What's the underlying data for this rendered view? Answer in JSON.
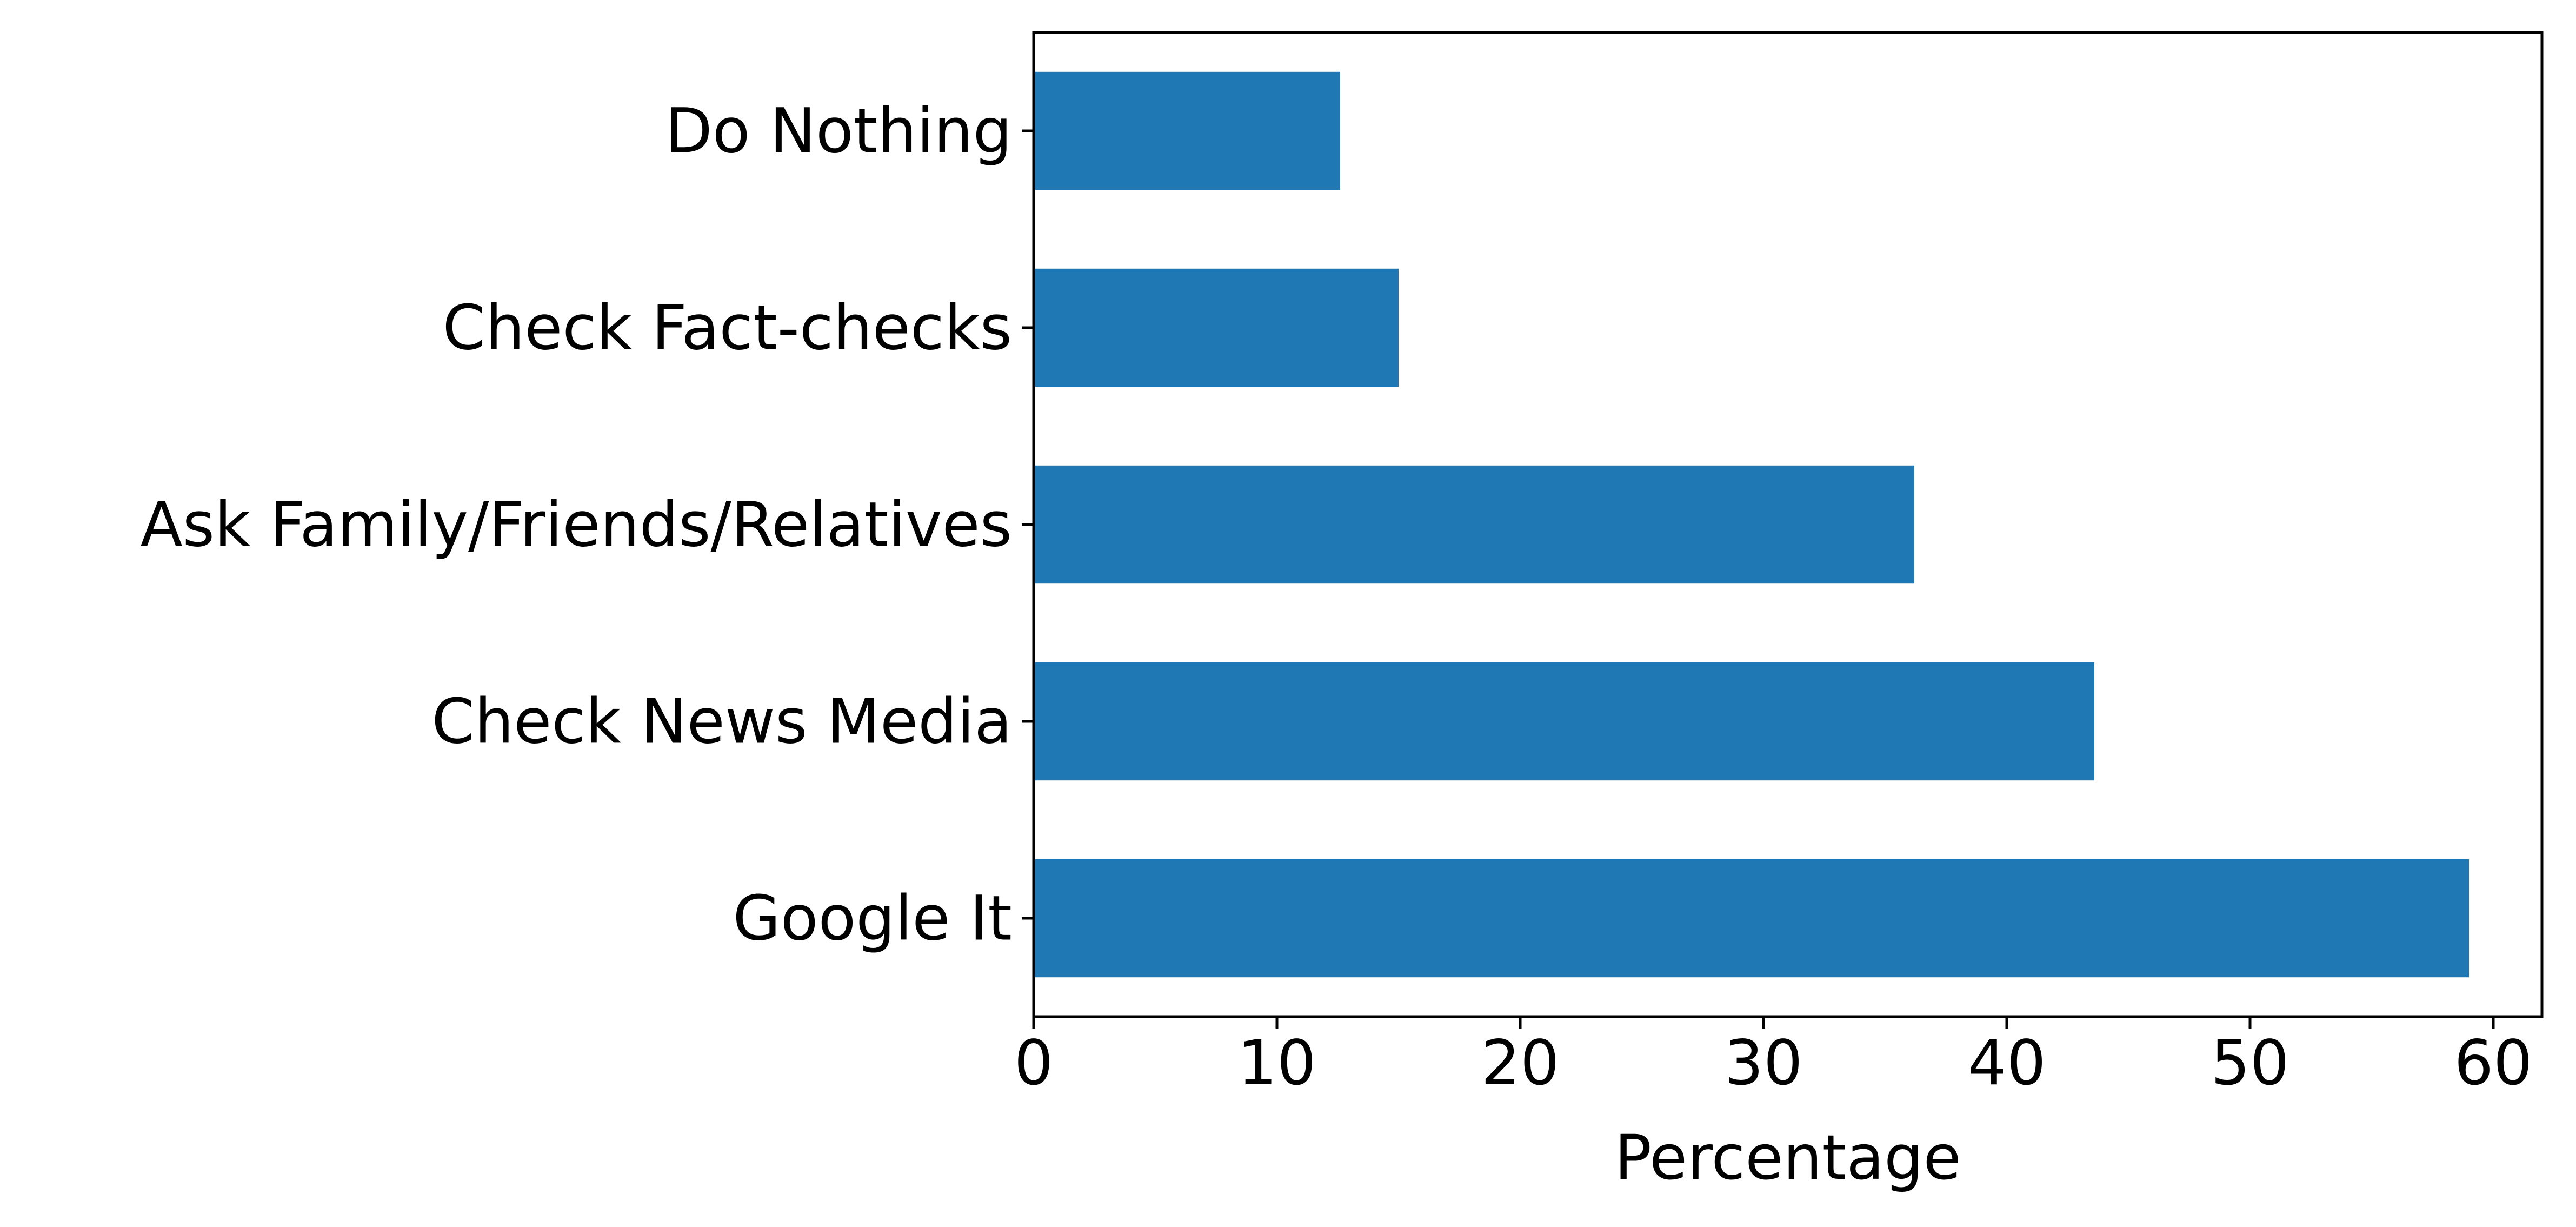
{
  "chart_data": {
    "type": "bar",
    "orientation": "horizontal",
    "categories": [
      "Google It",
      "Check News Media",
      "Ask Family/Friends/Relatives",
      "Check Fact-checks",
      "Do Nothing"
    ],
    "values": [
      59.0,
      43.6,
      36.2,
      15.0,
      12.6
    ],
    "xlabel": "Percentage",
    "ylabel": "",
    "title": "",
    "xlim": [
      0,
      62
    ],
    "xticks": [
      0,
      10,
      20,
      30,
      40,
      50,
      60
    ],
    "grid": false,
    "bar_color": "#1f77b4"
  }
}
